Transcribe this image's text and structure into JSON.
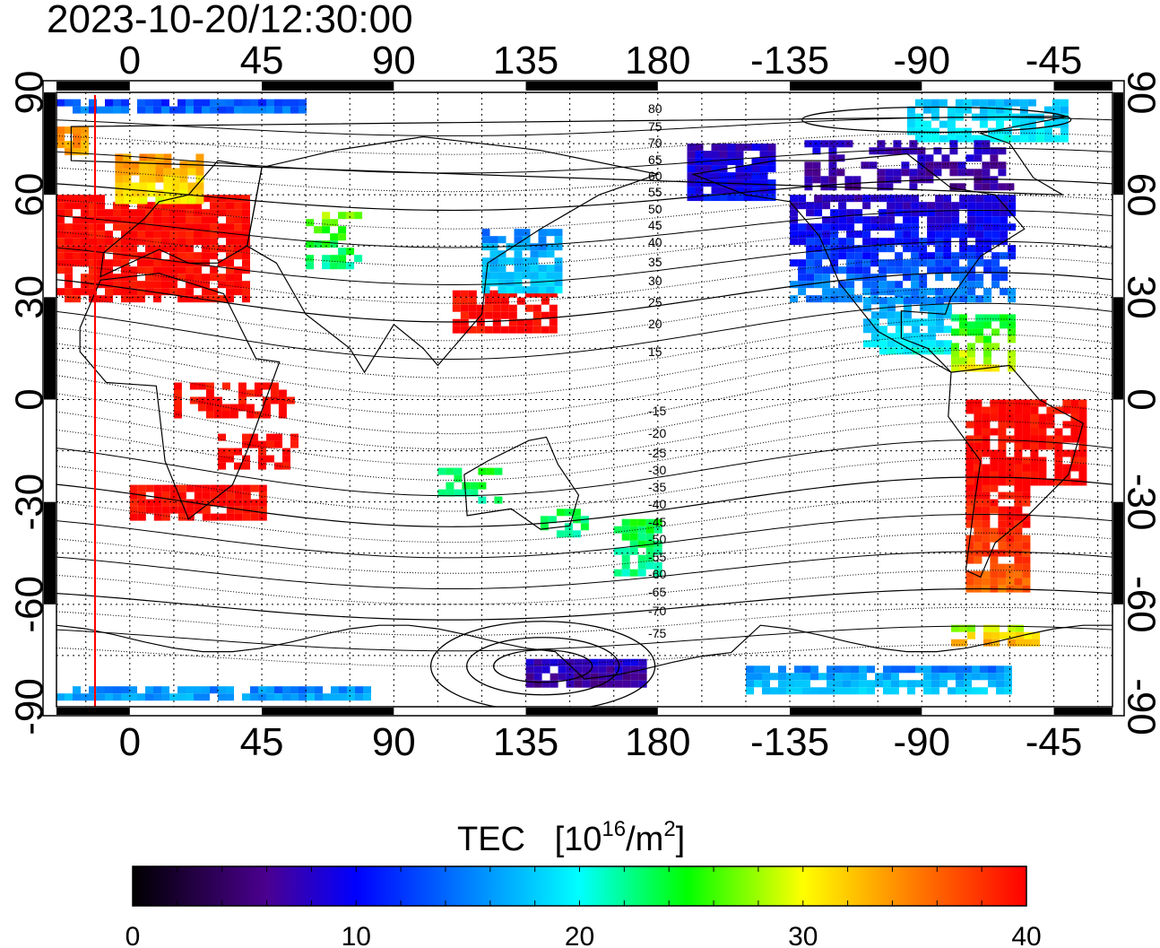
{
  "timestamp": "2023-10-20/12:30:00",
  "map": {
    "lon_ticks": [
      0,
      45,
      90,
      135,
      180,
      -135,
      -90,
      -45
    ],
    "lat_ticks_left": [
      90,
      60,
      30,
      0,
      -30,
      -60,
      -90
    ],
    "lat_ticks_right": [
      90,
      60,
      30,
      0,
      -30,
      -60,
      -90
    ],
    "contour_labels": [
      "80",
      "75",
      "70",
      "65",
      "60",
      "55",
      "50",
      "45",
      "40",
      "35",
      "30",
      "25",
      "20",
      "15",
      "-15",
      "-20",
      "-25",
      "-30",
      "-35",
      "-40",
      "-45",
      "-50",
      "-55",
      "-60",
      "-65",
      "-70",
      "-75"
    ],
    "sunlit_marker_lon": -7
  },
  "colorbar": {
    "title": "TEC",
    "unit_prefix": "[10",
    "unit_exp": "16",
    "unit_mid": "/m",
    "unit_exp2": "2",
    "unit_suffix": "]",
    "ticks": [
      0,
      10,
      20,
      30,
      40
    ],
    "stops": [
      "#000000",
      "#4b0090",
      "#0000ff",
      "#00ffff",
      "#00ff00",
      "#ffff00",
      "#ff8000",
      "#ff0000"
    ]
  }
}
